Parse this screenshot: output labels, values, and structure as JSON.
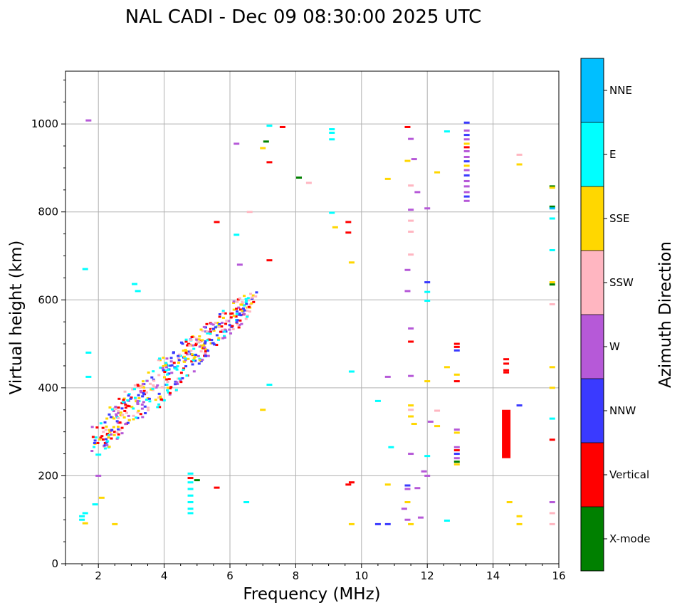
{
  "chart_data": {
    "type": "scatter",
    "title": "NAL CADI - Dec 09 08:30:00 2025 UTC",
    "xlabel": "Frequency (MHz)",
    "ylabel": "Virtual height (km)",
    "xlim": [
      1,
      16
    ],
    "ylim": [
      0,
      1120
    ],
    "xticks": [
      2,
      4,
      6,
      8,
      10,
      12,
      14,
      16
    ],
    "yticks": [
      0,
      200,
      400,
      600,
      800,
      1000
    ],
    "grid": true,
    "colorbar": {
      "label": "Azimuth Direction",
      "categories": [
        {
          "name": "X-mode",
          "color": "#008000"
        },
        {
          "name": "Vertical",
          "color": "#ff0000"
        },
        {
          "name": "NNW",
          "color": "#3a3aff"
        },
        {
          "name": "W",
          "color": "#b659d8"
        },
        {
          "name": "SSW",
          "color": "#ffb6c1"
        },
        {
          "name": "SSE",
          "color": "#ffd700"
        },
        {
          "name": "E",
          "color": "#00ffff"
        },
        {
          "name": "NNE",
          "color": "#00bfff"
        }
      ]
    },
    "echo_band": {
      "description": "dense oblique echo trace rising from ~2 MHz to ~6.5 MHz",
      "f_start": 1.9,
      "h_start": 280,
      "f_end": 6.7,
      "h_end": 600,
      "mix": [
        "NNW",
        "E",
        "SSE",
        "W",
        "SSW",
        "Vertical"
      ]
    },
    "points": [
      {
        "f": 1.5,
        "h": 100,
        "dir": "E"
      },
      {
        "f": 1.5,
        "h": 108,
        "dir": "E"
      },
      {
        "f": 1.6,
        "h": 92,
        "dir": "SSE"
      },
      {
        "f": 1.6,
        "h": 115,
        "dir": "E"
      },
      {
        "f": 1.9,
        "h": 135,
        "dir": "E"
      },
      {
        "f": 2.1,
        "h": 150,
        "dir": "SSE"
      },
      {
        "f": 2.0,
        "h": 248,
        "dir": "E"
      },
      {
        "f": 2.0,
        "h": 200,
        "dir": "W"
      },
      {
        "f": 1.6,
        "h": 670,
        "dir": "E"
      },
      {
        "f": 1.7,
        "h": 1008,
        "dir": "W"
      },
      {
        "f": 1.7,
        "h": 425,
        "dir": "E"
      },
      {
        "f": 1.7,
        "h": 480,
        "dir": "E"
      },
      {
        "f": 2.5,
        "h": 90,
        "dir": "SSE"
      },
      {
        "f": 3.1,
        "h": 636,
        "dir": "E"
      },
      {
        "f": 3.2,
        "h": 620,
        "dir": "E"
      },
      {
        "f": 4.8,
        "h": 205,
        "dir": "E"
      },
      {
        "f": 4.8,
        "h": 195,
        "dir": "Vertical"
      },
      {
        "f": 4.8,
        "h": 185,
        "dir": "E"
      },
      {
        "f": 4.8,
        "h": 170,
        "dir": "E"
      },
      {
        "f": 4.8,
        "h": 155,
        "dir": "E"
      },
      {
        "f": 4.8,
        "h": 140,
        "dir": "E"
      },
      {
        "f": 4.8,
        "h": 125,
        "dir": "E"
      },
      {
        "f": 4.8,
        "h": 115,
        "dir": "E"
      },
      {
        "f": 5.0,
        "h": 190,
        "dir": "X-mode"
      },
      {
        "f": 5.6,
        "h": 173,
        "dir": "Vertical"
      },
      {
        "f": 5.6,
        "h": 777,
        "dir": "Vertical"
      },
      {
        "f": 6.2,
        "h": 955,
        "dir": "W"
      },
      {
        "f": 6.2,
        "h": 748,
        "dir": "E"
      },
      {
        "f": 6.3,
        "h": 680,
        "dir": "W"
      },
      {
        "f": 6.5,
        "h": 140,
        "dir": "E"
      },
      {
        "f": 6.6,
        "h": 800,
        "dir": "SSW"
      },
      {
        "f": 7.0,
        "h": 945,
        "dir": "SSE"
      },
      {
        "f": 7.1,
        "h": 960,
        "dir": "X-mode"
      },
      {
        "f": 7.2,
        "h": 913,
        "dir": "Vertical"
      },
      {
        "f": 7.2,
        "h": 690,
        "dir": "Vertical"
      },
      {
        "f": 7.2,
        "h": 996,
        "dir": "E"
      },
      {
        "f": 7.6,
        "h": 993,
        "dir": "Vertical"
      },
      {
        "f": 7.0,
        "h": 350,
        "dir": "SSE"
      },
      {
        "f": 7.2,
        "h": 407,
        "dir": "E"
      },
      {
        "f": 8.1,
        "h": 878,
        "dir": "X-mode"
      },
      {
        "f": 8.4,
        "h": 866,
        "dir": "SSW"
      },
      {
        "f": 9.1,
        "h": 988,
        "dir": "E"
      },
      {
        "f": 9.1,
        "h": 980,
        "dir": "E"
      },
      {
        "f": 9.1,
        "h": 965,
        "dir": "E"
      },
      {
        "f": 9.1,
        "h": 798,
        "dir": "E"
      },
      {
        "f": 9.2,
        "h": 765,
        "dir": "SSE"
      },
      {
        "f": 9.6,
        "h": 777,
        "dir": "Vertical"
      },
      {
        "f": 9.6,
        "h": 753,
        "dir": "Vertical"
      },
      {
        "f": 9.6,
        "h": 180,
        "dir": "Vertical"
      },
      {
        "f": 9.7,
        "h": 185,
        "dir": "Vertical"
      },
      {
        "f": 9.7,
        "h": 685,
        "dir": "SSE"
      },
      {
        "f": 9.7,
        "h": 437,
        "dir": "E"
      },
      {
        "f": 9.7,
        "h": 90,
        "dir": "SSE"
      },
      {
        "f": 10.5,
        "h": 370,
        "dir": "E"
      },
      {
        "f": 10.5,
        "h": 90,
        "dir": "NNW"
      },
      {
        "f": 10.8,
        "h": 875,
        "dir": "SSE"
      },
      {
        "f": 10.8,
        "h": 425,
        "dir": "W"
      },
      {
        "f": 10.8,
        "h": 180,
        "dir": "SSE"
      },
      {
        "f": 10.8,
        "h": 90,
        "dir": "NNW"
      },
      {
        "f": 10.9,
        "h": 265,
        "dir": "E"
      },
      {
        "f": 11.4,
        "h": 993,
        "dir": "Vertical"
      },
      {
        "f": 11.4,
        "h": 916,
        "dir": "SSE"
      },
      {
        "f": 11.4,
        "h": 668,
        "dir": "W"
      },
      {
        "f": 11.4,
        "h": 620,
        "dir": "W"
      },
      {
        "f": 11.5,
        "h": 966,
        "dir": "W"
      },
      {
        "f": 11.5,
        "h": 860,
        "dir": "SSW"
      },
      {
        "f": 11.5,
        "h": 805,
        "dir": "W"
      },
      {
        "f": 11.5,
        "h": 780,
        "dir": "SSW"
      },
      {
        "f": 11.5,
        "h": 755,
        "dir": "SSW"
      },
      {
        "f": 11.5,
        "h": 703,
        "dir": "SSW"
      },
      {
        "f": 11.5,
        "h": 535,
        "dir": "W"
      },
      {
        "f": 11.5,
        "h": 505,
        "dir": "Vertical"
      },
      {
        "f": 11.5,
        "h": 427,
        "dir": "W"
      },
      {
        "f": 11.5,
        "h": 360,
        "dir": "SSE"
      },
      {
        "f": 11.5,
        "h": 350,
        "dir": "SSW"
      },
      {
        "f": 11.5,
        "h": 335,
        "dir": "SSE"
      },
      {
        "f": 11.5,
        "h": 250,
        "dir": "W"
      },
      {
        "f": 11.4,
        "h": 178,
        "dir": "NNW"
      },
      {
        "f": 11.4,
        "h": 170,
        "dir": "W"
      },
      {
        "f": 11.4,
        "h": 140,
        "dir": "SSE"
      },
      {
        "f": 11.3,
        "h": 125,
        "dir": "W"
      },
      {
        "f": 11.4,
        "h": 100,
        "dir": "W"
      },
      {
        "f": 11.5,
        "h": 90,
        "dir": "SSE"
      },
      {
        "f": 11.6,
        "h": 920,
        "dir": "W"
      },
      {
        "f": 11.6,
        "h": 318,
        "dir": "SSE"
      },
      {
        "f": 11.7,
        "h": 845,
        "dir": "W"
      },
      {
        "f": 11.7,
        "h": 172,
        "dir": "W"
      },
      {
        "f": 11.8,
        "h": 105,
        "dir": "W"
      },
      {
        "f": 11.9,
        "h": 210,
        "dir": "W"
      },
      {
        "f": 12.0,
        "h": 808,
        "dir": "W"
      },
      {
        "f": 12.0,
        "h": 640,
        "dir": "NNW"
      },
      {
        "f": 12.0,
        "h": 618,
        "dir": "E"
      },
      {
        "f": 12.0,
        "h": 598,
        "dir": "E"
      },
      {
        "f": 12.0,
        "h": 415,
        "dir": "SSE"
      },
      {
        "f": 12.0,
        "h": 245,
        "dir": "E"
      },
      {
        "f": 12.0,
        "h": 200,
        "dir": "W"
      },
      {
        "f": 12.1,
        "h": 323,
        "dir": "W"
      },
      {
        "f": 12.3,
        "h": 890,
        "dir": "SSE"
      },
      {
        "f": 12.3,
        "h": 348,
        "dir": "SSW"
      },
      {
        "f": 12.3,
        "h": 313,
        "dir": "SSE"
      },
      {
        "f": 12.6,
        "h": 983,
        "dir": "E"
      },
      {
        "f": 12.6,
        "h": 447,
        "dir": "SSE"
      },
      {
        "f": 12.6,
        "h": 98,
        "dir": "E"
      },
      {
        "f": 12.9,
        "h": 500,
        "dir": "Vertical"
      },
      {
        "f": 12.9,
        "h": 493,
        "dir": "Vertical"
      },
      {
        "f": 12.9,
        "h": 485,
        "dir": "NNW"
      },
      {
        "f": 12.9,
        "h": 430,
        "dir": "SSE"
      },
      {
        "f": 12.9,
        "h": 415,
        "dir": "Vertical"
      },
      {
        "f": 12.9,
        "h": 305,
        "dir": "W"
      },
      {
        "f": 12.9,
        "h": 298,
        "dir": "SSE"
      },
      {
        "f": 12.9,
        "h": 265,
        "dir": "W"
      },
      {
        "f": 12.9,
        "h": 258,
        "dir": "Vertical"
      },
      {
        "f": 12.9,
        "h": 250,
        "dir": "NNW"
      },
      {
        "f": 12.9,
        "h": 240,
        "dir": "W"
      },
      {
        "f": 12.9,
        "h": 232,
        "dir": "X-mode"
      },
      {
        "f": 12.9,
        "h": 226,
        "dir": "SSE"
      },
      {
        "f": 13.2,
        "h": 1003,
        "dir": "NNW"
      },
      {
        "f": 13.2,
        "h": 985,
        "dir": "W"
      },
      {
        "f": 13.2,
        "h": 975,
        "dir": "NNW"
      },
      {
        "f": 13.2,
        "h": 965,
        "dir": "W"
      },
      {
        "f": 13.2,
        "h": 955,
        "dir": "SSE"
      },
      {
        "f": 13.2,
        "h": 947,
        "dir": "Vertical"
      },
      {
        "f": 13.2,
        "h": 938,
        "dir": "W"
      },
      {
        "f": 13.2,
        "h": 925,
        "dir": "W"
      },
      {
        "f": 13.2,
        "h": 915,
        "dir": "NNW"
      },
      {
        "f": 13.2,
        "h": 905,
        "dir": "SSE"
      },
      {
        "f": 13.2,
        "h": 895,
        "dir": "W"
      },
      {
        "f": 13.2,
        "h": 883,
        "dir": "NNW"
      },
      {
        "f": 13.2,
        "h": 870,
        "dir": "W"
      },
      {
        "f": 13.2,
        "h": 858,
        "dir": "W"
      },
      {
        "f": 13.2,
        "h": 845,
        "dir": "W"
      },
      {
        "f": 13.2,
        "h": 835,
        "dir": "NNW"
      },
      {
        "f": 13.2,
        "h": 825,
        "dir": "W"
      },
      {
        "f": 14.4,
        "h": 465,
        "dir": "Vertical"
      },
      {
        "f": 14.4,
        "h": 455,
        "dir": "Vertical"
      },
      {
        "f": 14.4,
        "h": 440,
        "dir": "Vertical"
      },
      {
        "f": 14.4,
        "h": 435,
        "dir": "Vertical"
      },
      {
        "f": 14.5,
        "h": 140,
        "dir": "SSE"
      },
      {
        "f": 14.8,
        "h": 930,
        "dir": "SSW"
      },
      {
        "f": 14.8,
        "h": 908,
        "dir": "SSE"
      },
      {
        "f": 14.8,
        "h": 360,
        "dir": "NNW"
      },
      {
        "f": 14.8,
        "h": 108,
        "dir": "SSE"
      },
      {
        "f": 14.8,
        "h": 90,
        "dir": "SSE"
      },
      {
        "f": 15.8,
        "h": 858,
        "dir": "X-mode"
      },
      {
        "f": 15.8,
        "h": 855,
        "dir": "SSE"
      },
      {
        "f": 15.8,
        "h": 812,
        "dir": "X-mode"
      },
      {
        "f": 15.8,
        "h": 808,
        "dir": "NNE"
      },
      {
        "f": 15.8,
        "h": 785,
        "dir": "E"
      },
      {
        "f": 15.8,
        "h": 713,
        "dir": "E"
      },
      {
        "f": 15.8,
        "h": 640,
        "dir": "SSE"
      },
      {
        "f": 15.8,
        "h": 635,
        "dir": "X-mode"
      },
      {
        "f": 15.8,
        "h": 590,
        "dir": "SSW"
      },
      {
        "f": 15.8,
        "h": 447,
        "dir": "SSE"
      },
      {
        "f": 15.8,
        "h": 400,
        "dir": "SSE"
      },
      {
        "f": 15.8,
        "h": 330,
        "dir": "E"
      },
      {
        "f": 15.8,
        "h": 282,
        "dir": "Vertical"
      },
      {
        "f": 15.8,
        "h": 140,
        "dir": "W"
      },
      {
        "f": 15.8,
        "h": 115,
        "dir": "SSW"
      },
      {
        "f": 15.8,
        "h": 90,
        "dir": "SSW"
      }
    ],
    "segments": [
      {
        "f": 14.4,
        "h_low": 240,
        "h_high": 350,
        "dir": "Vertical"
      }
    ]
  }
}
